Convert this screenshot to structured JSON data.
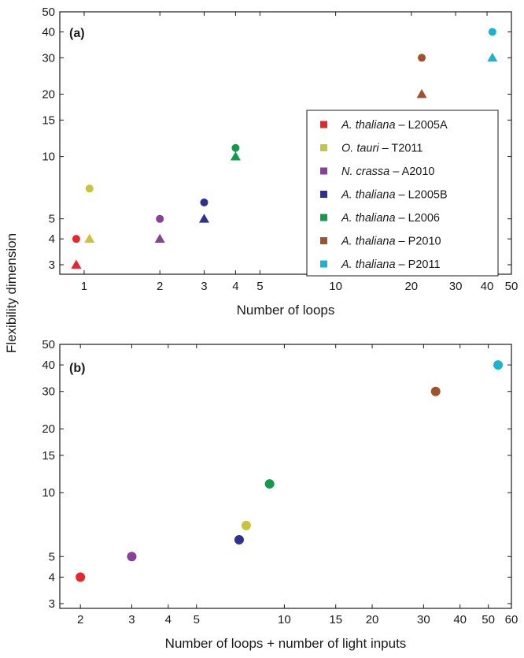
{
  "ylabel": "Flexibility dimension",
  "colors": {
    "L2005A": "#e8262b",
    "T2011": "#c9c43a",
    "A2010": "#8b3f9b",
    "L2005B": "#2e3192",
    "L2006": "#109c48",
    "P2010": "#a0532a",
    "P2011": "#1ab4d0"
  },
  "chart_data": [
    {
      "type": "scatter",
      "panel_label": "(a)",
      "xlabel": "Number of loops",
      "ylabel": "Flexibility dimension",
      "xscale": "log",
      "yscale": "log",
      "xlim": [
        0.8,
        50
      ],
      "ylim": [
        2.7,
        50
      ],
      "xticks": [
        1,
        2,
        3,
        4,
        5,
        10,
        20,
        30,
        40,
        50
      ],
      "xtick_labels": [
        "1",
        "2",
        "3",
        "4",
        "5",
        "10",
        "20",
        "30",
        "40",
        "50"
      ],
      "yticks": [
        3,
        4,
        5,
        10,
        15,
        20,
        30,
        40,
        50
      ],
      "ytick_labels": [
        "3",
        "4",
        "5",
        "10",
        "15",
        "20",
        "30",
        "40",
        "50"
      ],
      "legend_position": "right",
      "legend": [
        {
          "key": "L2005A",
          "species": "A. thaliana",
          "ref": " – L2005A"
        },
        {
          "key": "T2011",
          "species": "O. tauri",
          "ref": " – T2011"
        },
        {
          "key": "A2010",
          "species": "N. crassa",
          "ref": " – A2010"
        },
        {
          "key": "L2005B",
          "species": "A. thaliana",
          "ref": " – L2005B"
        },
        {
          "key": "L2006",
          "species": "A. thaliana",
          "ref": " – L2006"
        },
        {
          "key": "P2010",
          "species": "A. thaliana",
          "ref": " – P2010"
        },
        {
          "key": "P2011",
          "species": "A. thaliana",
          "ref": " – P2011"
        }
      ],
      "points": [
        {
          "series": "L2005A",
          "marker": "circle",
          "x": 0.93,
          "y": 4
        },
        {
          "series": "L2005A",
          "marker": "triangle",
          "x": 0.93,
          "y": 3
        },
        {
          "series": "T2011",
          "marker": "circle",
          "x": 1.05,
          "y": 7
        },
        {
          "series": "T2011",
          "marker": "triangle",
          "x": 1.05,
          "y": 4
        },
        {
          "series": "A2010",
          "marker": "circle",
          "x": 2,
          "y": 5
        },
        {
          "series": "A2010",
          "marker": "triangle",
          "x": 2,
          "y": 4
        },
        {
          "series": "L2005B",
          "marker": "circle",
          "x": 3,
          "y": 6
        },
        {
          "series": "L2005B",
          "marker": "triangle",
          "x": 3,
          "y": 5
        },
        {
          "series": "L2006",
          "marker": "circle",
          "x": 4,
          "y": 11
        },
        {
          "series": "L2006",
          "marker": "triangle",
          "x": 4,
          "y": 10
        },
        {
          "series": "P2010",
          "marker": "circle",
          "x": 22,
          "y": 30
        },
        {
          "series": "P2010",
          "marker": "triangle",
          "x": 22,
          "y": 20
        },
        {
          "series": "P2011",
          "marker": "circle",
          "x": 42,
          "y": 40
        },
        {
          "series": "P2011",
          "marker": "triangle",
          "x": 42,
          "y": 30
        }
      ]
    },
    {
      "type": "scatter",
      "panel_label": "(b)",
      "xlabel": "Number of loops + number of light inputs",
      "ylabel": "Flexibility dimension",
      "xscale": "log",
      "yscale": "log",
      "xlim": [
        1.7,
        60
      ],
      "ylim": [
        2.85,
        50
      ],
      "xticks": [
        2,
        3,
        4,
        5,
        10,
        15,
        20,
        30,
        40,
        50,
        60
      ],
      "xtick_labels": [
        "2",
        "3",
        "4",
        "5",
        "10",
        "15",
        "20",
        "30",
        "40",
        "50",
        "60"
      ],
      "yticks": [
        3,
        4,
        5,
        10,
        15,
        20,
        30,
        40,
        50
      ],
      "ytick_labels": [
        "3",
        "4",
        "5",
        "10",
        "15",
        "20",
        "30",
        "40",
        "50"
      ],
      "points": [
        {
          "series": "L2005A",
          "marker": "circle",
          "x": 2,
          "y": 4
        },
        {
          "series": "A2010",
          "marker": "circle",
          "x": 3,
          "y": 5
        },
        {
          "series": "L2005B",
          "marker": "circle",
          "x": 7,
          "y": 6
        },
        {
          "series": "T2011",
          "marker": "circle",
          "x": 7.4,
          "y": 7
        },
        {
          "series": "L2006",
          "marker": "circle",
          "x": 8.9,
          "y": 11
        },
        {
          "series": "P2010",
          "marker": "circle",
          "x": 33,
          "y": 30
        },
        {
          "series": "P2011",
          "marker": "circle",
          "x": 54,
          "y": 40
        }
      ]
    }
  ]
}
